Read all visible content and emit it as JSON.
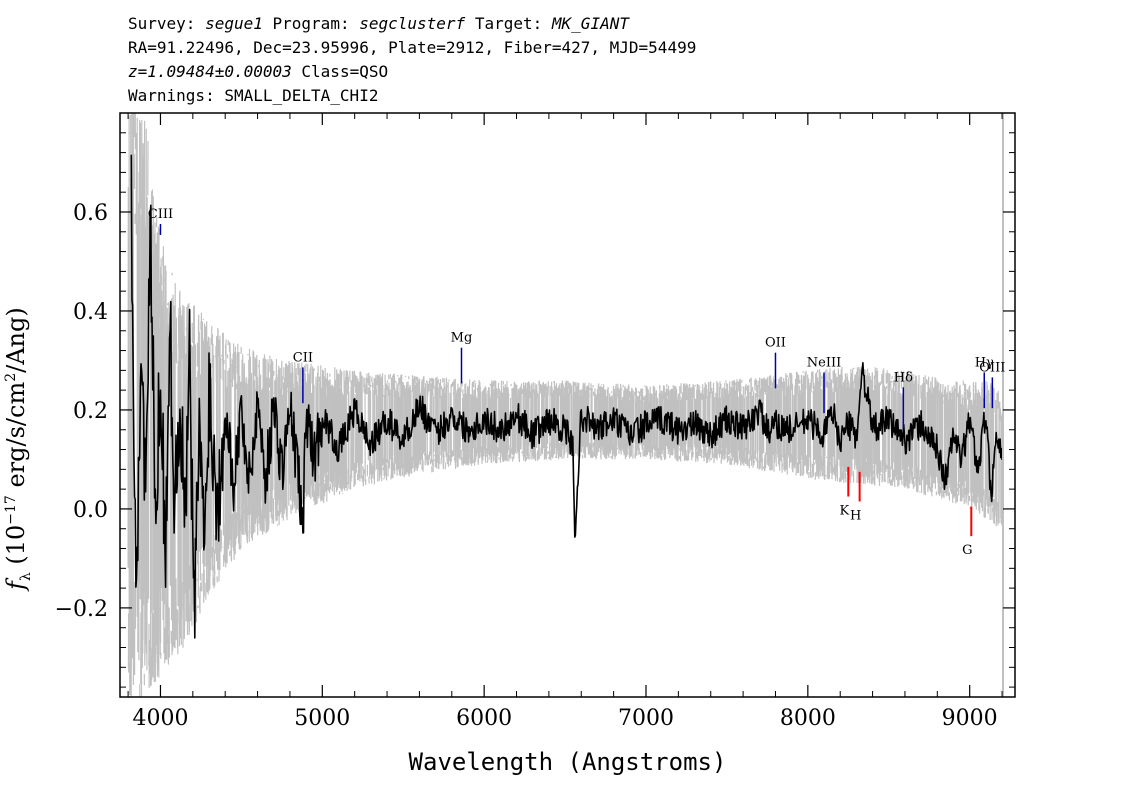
{
  "header": {
    "line1": {
      "survey_label": "Survey:",
      "survey": "segue1",
      "program_label": "Program:",
      "program": "segclusterf",
      "target_label": "Target:",
      "target": "MK_GIANT"
    },
    "line2": "RA=91.22496, Dec=23.95996, Plate=2912, Fiber=427, MJD=54499",
    "line3": {
      "z": "z=1.09484±0.00003",
      "cls": "Class=QSO"
    },
    "line4": "Warnings: SMALL_DELTA_CHI2"
  },
  "chart_data": {
    "type": "line",
    "title": "",
    "xlabel": "Wavelength (Angstroms)",
    "ylabel": "f_λ (10^-17 erg/s/cm^2/Ang)",
    "xlim": [
      3750,
      9280
    ],
    "ylim": [
      -0.38,
      0.8
    ],
    "xticks": [
      4000,
      5000,
      6000,
      7000,
      8000,
      9000
    ],
    "yticks": [
      -0.2,
      0.0,
      0.2,
      0.4,
      0.6
    ],
    "ytick_labels": [
      "−0.2",
      "0.0",
      "0.2",
      "0.4",
      "0.6"
    ],
    "colors": {
      "error_band": "#c0c0c0",
      "flux": "#000000",
      "emission": "#0000aa",
      "absorption": "#ff0000"
    },
    "series": [
      {
        "name": "",
        "style": "grey noise band",
        "color": "#c0c0c0",
        "x": [
          3800,
          3900,
          4000,
          4100,
          4200,
          4300,
          4500,
          4800,
          5200,
          5600,
          6000,
          6500,
          7000,
          7500,
          8000,
          8300,
          8600,
          8900,
          9100,
          9200
        ],
        "upper": [
          0.85,
          0.8,
          0.55,
          0.45,
          0.42,
          0.38,
          0.33,
          0.3,
          0.28,
          0.27,
          0.26,
          0.26,
          0.25,
          0.26,
          0.28,
          0.29,
          0.28,
          0.26,
          0.26,
          0.24
        ],
        "lower": [
          -0.4,
          -0.38,
          -0.35,
          -0.3,
          -0.25,
          -0.18,
          -0.08,
          -0.02,
          0.04,
          0.07,
          0.09,
          0.1,
          0.1,
          0.09,
          0.06,
          0.05,
          0.04,
          0.01,
          -0.02,
          -0.05
        ]
      },
      {
        "name": "",
        "style": "black flux",
        "color": "#000000",
        "x": [
          3820,
          3850,
          3880,
          3910,
          3940,
          3970,
          4000,
          4030,
          4060,
          4090,
          4120,
          4150,
          4180,
          4210,
          4240,
          4270,
          4300,
          4350,
          4400,
          4450,
          4500,
          4550,
          4600,
          4650,
          4700,
          4750,
          4800,
          4850,
          4880,
          4900,
          4950,
          5000,
          5100,
          5200,
          5300,
          5400,
          5500,
          5600,
          5700,
          5800,
          5900,
          6000,
          6100,
          6200,
          6300,
          6400,
          6500,
          6550,
          6560,
          6600,
          6700,
          6800,
          6900,
          7000,
          7100,
          7200,
          7300,
          7400,
          7500,
          7600,
          7700,
          7760,
          7800,
          7900,
          8000,
          8100,
          8150,
          8200,
          8250,
          8300,
          8340,
          8400,
          8500,
          8600,
          8700,
          8800,
          8850,
          8900,
          8950,
          9000,
          9050,
          9100,
          9130,
          9160,
          9200
        ],
        "y": [
          0.6,
          -0.15,
          0.3,
          0.05,
          0.55,
          -0.05,
          0.3,
          -0.08,
          0.35,
          0.0,
          0.25,
          -0.05,
          0.3,
          -0.25,
          0.2,
          -0.1,
          0.25,
          0.0,
          0.22,
          0.05,
          0.2,
          0.05,
          0.22,
          0.06,
          0.21,
          0.08,
          0.2,
          0.08,
          -0.05,
          0.2,
          0.1,
          0.19,
          0.12,
          0.2,
          0.13,
          0.18,
          0.14,
          0.21,
          0.15,
          0.19,
          0.16,
          0.18,
          0.16,
          0.19,
          0.15,
          0.18,
          0.16,
          0.12,
          -0.05,
          0.19,
          0.16,
          0.18,
          0.15,
          0.17,
          0.18,
          0.16,
          0.17,
          0.15,
          0.18,
          0.16,
          0.2,
          0.15,
          0.17,
          0.16,
          0.18,
          0.15,
          0.2,
          0.14,
          0.17,
          0.15,
          0.28,
          0.16,
          0.18,
          0.14,
          0.17,
          0.12,
          0.06,
          0.15,
          0.1,
          0.18,
          0.08,
          0.2,
          0.02,
          0.14,
          0.12
        ]
      }
    ],
    "emission_lines": [
      {
        "label": "CIII",
        "x": 4000,
        "y_top": 0.6,
        "y_bottom": 0.59
      },
      {
        "label": "CII",
        "x": 4880,
        "y_top": 0.31,
        "y_bottom": 0.25
      },
      {
        "label": "Mg",
        "x": 5860,
        "y_top": 0.35,
        "y_bottom": 0.29
      },
      {
        "label": "OII",
        "x": 7800,
        "y_top": 0.34,
        "y_bottom": 0.28
      },
      {
        "label": "NeIII",
        "x": 8100,
        "y_top": 0.3,
        "y_bottom": 0.23
      },
      {
        "label": "Hδ",
        "x": 8590,
        "y_top": 0.27,
        "y_bottom": 0.2
      },
      {
        "label": "Hγ",
        "x": 9090,
        "y_top": 0.3,
        "y_bottom": 0.24
      },
      {
        "label": "OIII",
        "x": 9140,
        "y_top": 0.29,
        "y_bottom": 0.24
      }
    ],
    "absorption_lines": [
      {
        "label": "K",
        "x": 8250,
        "y_top": 0.085,
        "y_bottom": 0.025
      },
      {
        "label": "H",
        "x": 8320,
        "y_top": 0.075,
        "y_bottom": 0.015
      },
      {
        "label": "G",
        "x": 9010,
        "y_top": 0.005,
        "y_bottom": -0.055
      }
    ]
  }
}
